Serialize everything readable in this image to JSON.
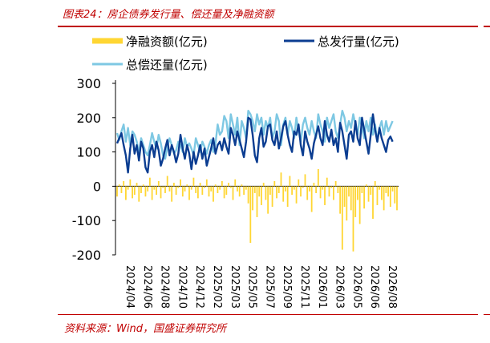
{
  "figure": {
    "title": "图表24：房企债券发行量、偿还量及净融资额",
    "source": "资料来源：Wind，国盛证券研究所"
  },
  "chart_data": {
    "type": "bar+line",
    "ylim": [
      -200,
      300
    ],
    "yticks": [
      "300",
      "200",
      "100",
      "0",
      "-100",
      "-200"
    ],
    "xticks": [
      "2024/04",
      "2024/06",
      "2024/08",
      "2024/10",
      "2024/12",
      "2025/02",
      "2025/03",
      "2025/05",
      "2025/07",
      "2025/09",
      "2025/11",
      "2026/01",
      "2026/03",
      "2026/05",
      "2026/06",
      "2026/08"
    ],
    "legend_placement": "top",
    "colors": {
      "net": "#ffd633",
      "issuance": "#0b3d91",
      "repayment": "#7ec8e3"
    },
    "series": [
      {
        "key": "net",
        "name": "净融资额(亿元)",
        "kind": "bar",
        "values": [
          -30,
          5,
          -20,
          15,
          -40,
          -10,
          20,
          -35,
          -25,
          10,
          -45,
          -20,
          5,
          -30,
          -15,
          25,
          -40,
          -10,
          -25,
          15,
          -35,
          -5,
          -20,
          30,
          -15,
          -45,
          10,
          -25,
          -5,
          20,
          -30,
          -15,
          5,
          -40,
          -10,
          25,
          -20,
          -35,
          10,
          -25,
          -5,
          20,
          -30,
          -15,
          -45,
          5,
          -20,
          -10,
          15,
          -35,
          -25,
          10,
          -5,
          -40,
          20,
          -15,
          -30,
          5,
          -25,
          -10,
          -50,
          -165,
          -70,
          -20,
          -90,
          -30,
          -55,
          10,
          -40,
          -80,
          -25,
          -60,
          15,
          -35,
          -20,
          40,
          -45,
          -15,
          -60,
          30,
          -25,
          -10,
          -50,
          20,
          -30,
          -5,
          35,
          -40,
          -15,
          -75,
          10,
          -20,
          50,
          -35,
          -10,
          -55,
          25,
          -30,
          -5,
          -40,
          15,
          -20,
          -80,
          -185,
          -60,
          -100,
          -30,
          -70,
          -190,
          -90,
          -40,
          -110,
          -20,
          -65,
          5,
          -45,
          -25,
          -95,
          15,
          -55,
          -10,
          -40,
          -70,
          -20,
          -30,
          -60,
          -15,
          -50,
          -70
        ],
        "peaks": {
          "2025/03": -165,
          "2026/02": -185,
          "2026/03": -190
        }
      },
      {
        "key": "issuance",
        "name": "总发行量(亿元)",
        "kind": "line",
        "values": [
          125,
          140,
          155,
          120,
          90,
          40,
          110,
          150,
          95,
          120,
          75,
          130,
          110,
          55,
          40,
          100,
          120,
          85,
          130,
          105,
          60,
          80,
          110,
          135,
          90,
          120,
          100,
          70,
          95,
          150,
          110,
          80,
          120,
          95,
          50,
          100,
          65,
          90,
          120,
          80,
          110,
          60,
          85,
          110,
          140,
          95,
          120,
          130,
          105,
          140,
          115,
          95,
          170,
          150,
          120,
          160,
          135,
          110,
          85,
          130,
          200,
          195,
          150,
          90,
          70,
          140,
          170,
          115,
          130,
          175,
          180,
          135,
          120,
          160,
          110,
          140,
          175,
          190,
          150,
          120,
          100,
          160,
          150,
          180,
          120,
          90,
          160,
          130,
          110,
          80,
          125,
          150,
          175,
          140,
          120,
          190,
          150,
          130,
          165,
          120,
          140,
          100,
          185,
          160,
          120,
          80,
          150,
          160,
          130,
          190,
          140,
          120,
          200,
          165,
          130,
          95,
          150,
          210,
          165,
          130,
          170,
          140,
          120,
          100,
          135,
          145,
          130
        ],
        "range": [
          40,
          215
        ]
      },
      {
        "key": "repayment",
        "name": "总偿还量(亿元)",
        "kind": "line",
        "values": [
          155,
          135,
          160,
          180,
          130,
          170,
          120,
          160,
          150,
          130,
          95,
          140,
          120,
          100,
          90,
          120,
          155,
          130,
          110,
          150,
          125,
          90,
          80,
          115,
          140,
          120,
          95,
          105,
          130,
          120,
          100,
          140,
          115,
          125,
          110,
          90,
          140,
          120,
          100,
          130,
          115,
          95,
          120,
          135,
          100,
          125,
          180,
          150,
          160,
          205,
          190,
          140,
          210,
          180,
          150,
          200,
          120,
          190,
          170,
          140,
          220,
          210,
          190,
          160,
          210,
          180,
          200,
          150,
          190,
          170,
          200,
          140,
          160,
          210,
          190,
          120,
          180,
          200,
          150,
          190,
          170,
          140,
          200,
          160,
          130,
          180,
          200,
          170,
          150,
          190,
          160,
          140,
          210,
          180,
          160,
          130,
          200,
          170,
          190,
          210,
          160,
          140,
          180,
          220,
          200,
          160,
          190,
          170,
          210,
          180,
          150,
          200,
          170,
          140,
          190,
          160,
          200,
          150,
          180,
          130,
          170,
          190,
          150,
          190,
          160,
          175,
          190
        ],
        "range": [
          80,
          225
        ]
      }
    ]
  }
}
